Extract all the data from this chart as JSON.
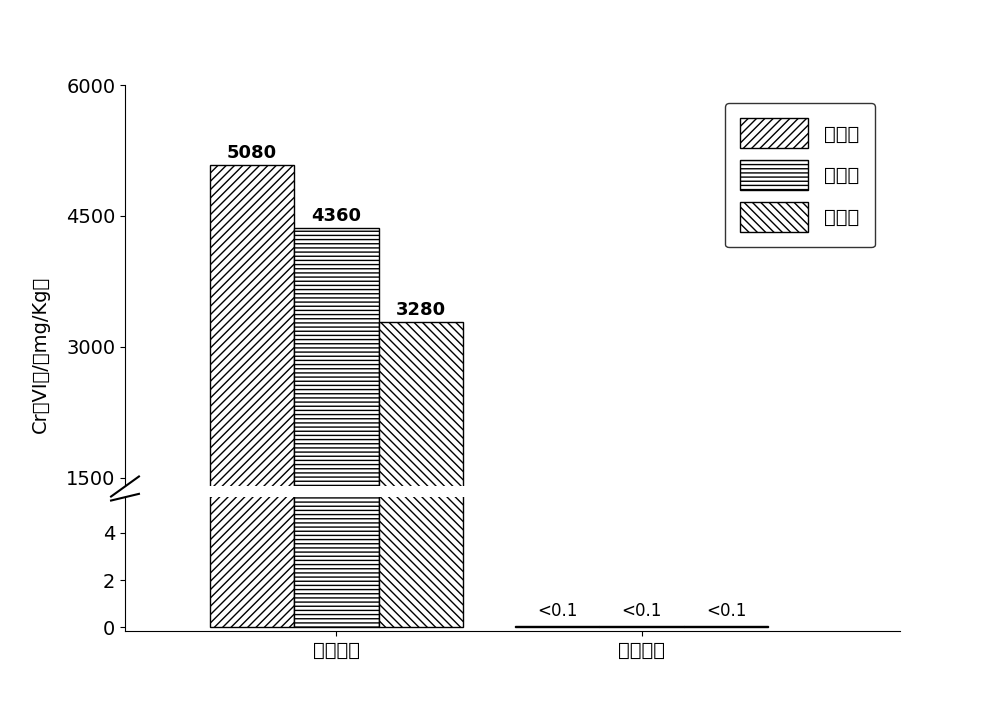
{
  "categories": [
    "初始浓度",
    "验收浓度"
  ],
  "series": [
    {
      "label": "最大值",
      "values": [
        5080,
        0.05
      ],
      "hatch": "////"
    },
    {
      "label": "平均值",
      "values": [
        4360,
        0.05
      ],
      "hatch": "----"
    },
    {
      "label": "最小值",
      "values": [
        3280,
        0.05
      ],
      "hatch": "\\\\\\\\"
    }
  ],
  "bar_labels_initial": [
    "5080",
    "4360",
    "3280"
  ],
  "bar_labels_acceptance": [
    "<0.1",
    "<0.1",
    "<0.1"
  ],
  "ylabel": "Cr（VI）/（mg/Kg）",
  "yticks_lower": [
    0,
    2,
    4
  ],
  "yticks_upper": [
    1500,
    3000,
    4500,
    6000
  ],
  "break_lower_max": 5.5,
  "break_upper_min": 1400,
  "upper_display_max": 6000,
  "bar_width": 0.18,
  "background_color": "#ffffff",
  "tick_fontsize": 14,
  "label_fontsize": 14,
  "legend_fontsize": 14,
  "annot_fontsize": 13
}
